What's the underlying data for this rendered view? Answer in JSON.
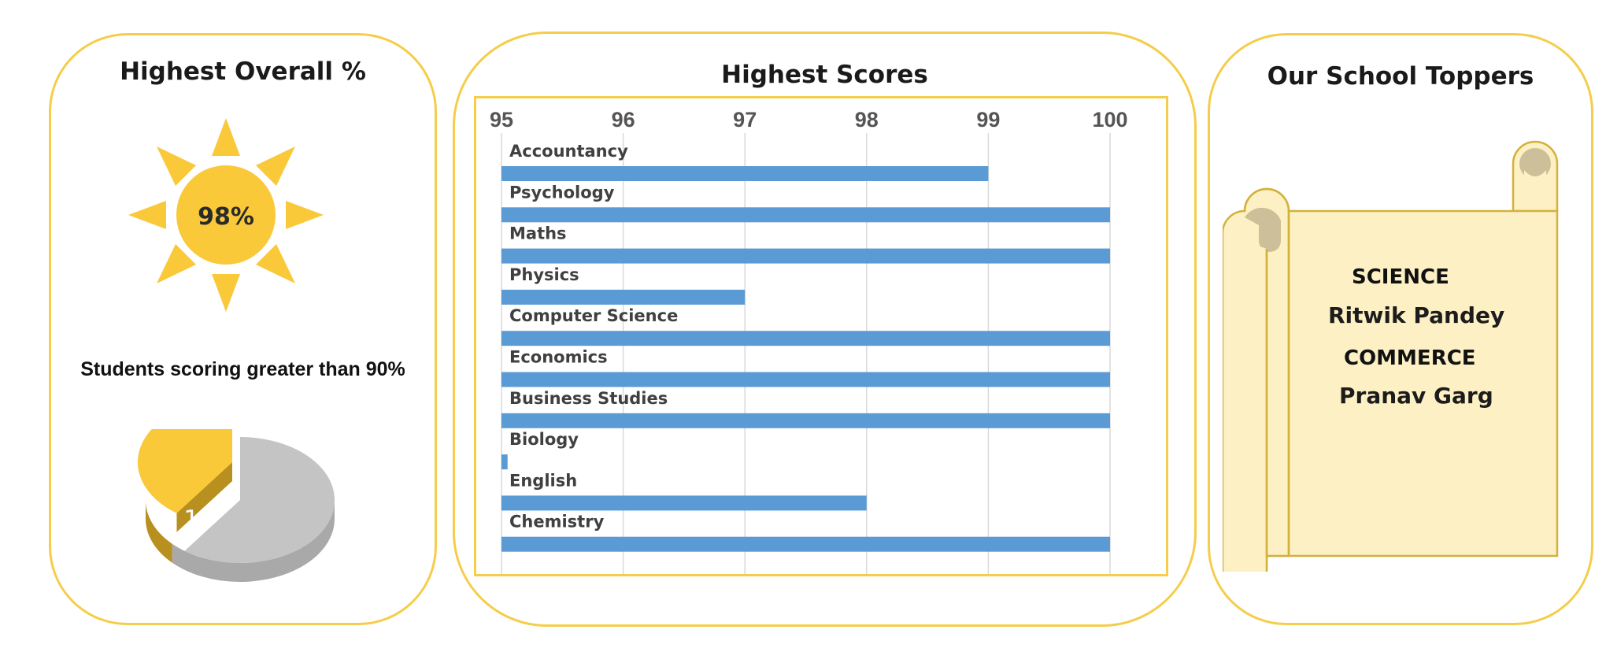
{
  "left_panel": {
    "title": "Highest Overall %",
    "highest_overall_value": "98%",
    "students_caption": "Students scoring greater than 90%",
    "students_count": "19",
    "students_pie": {
      "highlight_fraction": 0.4,
      "highlight_color": "#f9c93a",
      "remainder_color": "#c4c4c4"
    }
  },
  "middle_panel": {
    "title": "Highest Scores"
  },
  "right_panel": {
    "title": "Our School Toppers",
    "science_heading": "SCIENCE",
    "science_topper": "Ritwik Pandey",
    "commerce_heading": "COMMERCE",
    "commerce_topper": "Pranav Garg"
  },
  "colors": {
    "accent_border": "#f5cd4b",
    "sun": "#f9c93a",
    "bar": "#5b9bd5",
    "scroll_fill": "#fdf0c4",
    "scroll_curl": "#cdbf99"
  },
  "chart_data": {
    "type": "bar",
    "orientation": "horizontal",
    "categories": [
      "Accountancy",
      "Psychology",
      "Maths",
      "Physics",
      "Computer Science",
      "Economics",
      "Business Studies",
      "Biology",
      "English",
      "Chemistry"
    ],
    "values": [
      99,
      100,
      100,
      97,
      100,
      100,
      100,
      95.05,
      98,
      100
    ],
    "xlim": [
      95,
      100
    ],
    "xticks": [
      "95",
      "96",
      "97",
      "98",
      "99",
      "100"
    ],
    "axis_position": "top",
    "grid": true,
    "xlabel": "",
    "ylabel": ""
  }
}
